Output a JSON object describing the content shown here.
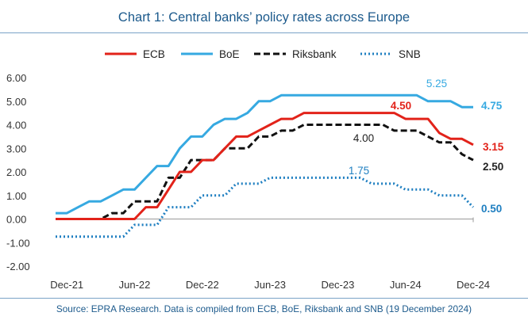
{
  "title": "Chart 1: Central banks’ policy rates across Europe",
  "footer": "Source: EPRA Research. Data is compiled from ECB, BoE, Riksbank and SNB (19 December 2024)",
  "chart_data": {
    "type": "line",
    "title": "Chart 1: Central banks’ policy rates across Europe",
    "ylim": [
      -2.0,
      6.0
    ],
    "yticks": [
      "6.00",
      "5.00",
      "4.00",
      "3.00",
      "2.00",
      "1.00",
      "0.00",
      "-1.00",
      "-2.00"
    ],
    "xlim": [
      "2021-11",
      "2024-12"
    ],
    "xticks": [
      "Dec-21",
      "Jun-22",
      "Dec-22",
      "Jun-23",
      "Dec-23",
      "Jun-24",
      "Dec-24"
    ],
    "legend_position": "top",
    "grid": false,
    "series": [
      {
        "name": "ECB",
        "color": "#e2231a",
        "style": "solid",
        "points": [
          [
            "2021-11",
            0
          ],
          [
            "2022-06",
            0
          ],
          [
            "2022-07",
            0.5
          ],
          [
            "2022-08",
            0.5
          ],
          [
            "2022-09",
            1.25
          ],
          [
            "2022-10",
            2.0
          ],
          [
            "2022-11",
            2.0
          ],
          [
            "2022-12",
            2.5
          ],
          [
            "2023-01",
            2.5
          ],
          [
            "2023-02",
            3.0
          ],
          [
            "2023-03",
            3.5
          ],
          [
            "2023-04",
            3.5
          ],
          [
            "2023-05",
            3.75
          ],
          [
            "2023-06",
            4.0
          ],
          [
            "2023-07",
            4.25
          ],
          [
            "2023-08",
            4.25
          ],
          [
            "2023-09",
            4.5
          ],
          [
            "2024-05",
            4.5
          ],
          [
            "2024-06",
            4.25
          ],
          [
            "2024-08",
            4.25
          ],
          [
            "2024-09",
            3.65
          ],
          [
            "2024-10",
            3.4
          ],
          [
            "2024-11",
            3.4
          ],
          [
            "2024-12",
            3.15
          ]
        ]
      },
      {
        "name": "BoE",
        "color": "#36a9e1",
        "style": "solid",
        "points": [
          [
            "2021-11",
            0.25
          ],
          [
            "2021-12",
            0.25
          ],
          [
            "2022-01",
            0.5
          ],
          [
            "2022-02",
            0.75
          ],
          [
            "2022-03",
            0.75
          ],
          [
            "2022-04",
            1.0
          ],
          [
            "2022-05",
            1.25
          ],
          [
            "2022-06",
            1.25
          ],
          [
            "2022-07",
            1.75
          ],
          [
            "2022-08",
            2.25
          ],
          [
            "2022-09",
            2.25
          ],
          [
            "2022-10",
            3.0
          ],
          [
            "2022-11",
            3.5
          ],
          [
            "2022-12",
            3.5
          ],
          [
            "2023-01",
            4.0
          ],
          [
            "2023-02",
            4.25
          ],
          [
            "2023-03",
            4.25
          ],
          [
            "2023-04",
            4.5
          ],
          [
            "2023-05",
            5.0
          ],
          [
            "2023-06",
            5.0
          ],
          [
            "2023-07",
            5.25
          ],
          [
            "2024-07",
            5.25
          ],
          [
            "2024-08",
            5.0
          ],
          [
            "2024-10",
            5.0
          ],
          [
            "2024-11",
            4.75
          ],
          [
            "2024-12",
            4.75
          ]
        ]
      },
      {
        "name": "Riksbank",
        "color": "#111111",
        "style": "dashed",
        "points": [
          [
            "2021-11",
            0
          ],
          [
            "2022-03",
            0
          ],
          [
            "2022-04",
            0.25
          ],
          [
            "2022-05",
            0.25
          ],
          [
            "2022-06",
            0.75
          ],
          [
            "2022-07",
            0.75
          ],
          [
            "2022-08",
            0.75
          ],
          [
            "2022-09",
            1.75
          ],
          [
            "2022-10",
            1.75
          ],
          [
            "2022-11",
            2.5
          ],
          [
            "2022-12",
            2.5
          ],
          [
            "2023-01",
            2.5
          ],
          [
            "2023-02",
            3.0
          ],
          [
            "2023-03",
            3.0
          ],
          [
            "2023-04",
            3.0
          ],
          [
            "2023-05",
            3.5
          ],
          [
            "2023-06",
            3.5
          ],
          [
            "2023-07",
            3.75
          ],
          [
            "2023-08",
            3.75
          ],
          [
            "2023-09",
            4.0
          ],
          [
            "2024-04",
            4.0
          ],
          [
            "2024-05",
            3.75
          ],
          [
            "2024-06",
            3.75
          ],
          [
            "2024-07",
            3.75
          ],
          [
            "2024-08",
            3.5
          ],
          [
            "2024-09",
            3.25
          ],
          [
            "2024-10",
            3.25
          ],
          [
            "2024-11",
            2.75
          ],
          [
            "2024-12",
            2.5
          ]
        ]
      },
      {
        "name": "SNB",
        "color": "#1f7fc1",
        "style": "dotted",
        "points": [
          [
            "2021-11",
            -0.75
          ],
          [
            "2022-05",
            -0.75
          ],
          [
            "2022-06",
            -0.25
          ],
          [
            "2022-07",
            -0.25
          ],
          [
            "2022-08",
            -0.25
          ],
          [
            "2022-09",
            0.5
          ],
          [
            "2022-10",
            0.5
          ],
          [
            "2022-11",
            0.5
          ],
          [
            "2022-12",
            1.0
          ],
          [
            "2023-01",
            1.0
          ],
          [
            "2023-02",
            1.0
          ],
          [
            "2023-03",
            1.5
          ],
          [
            "2023-04",
            1.5
          ],
          [
            "2023-05",
            1.5
          ],
          [
            "2023-06",
            1.75
          ],
          [
            "2024-02",
            1.75
          ],
          [
            "2024-03",
            1.5
          ],
          [
            "2024-04",
            1.5
          ],
          [
            "2024-05",
            1.5
          ],
          [
            "2024-06",
            1.25
          ],
          [
            "2024-07",
            1.25
          ],
          [
            "2024-08",
            1.25
          ],
          [
            "2024-09",
            1.0
          ],
          [
            "2024-10",
            1.0
          ],
          [
            "2024-11",
            1.0
          ],
          [
            "2024-12",
            0.5
          ]
        ]
      }
    ],
    "annotations": [
      {
        "text": "5.25",
        "series": "BoE",
        "color": "#36a9e1"
      },
      {
        "text": "4.75",
        "series": "BoE",
        "color": "#36a9e1",
        "bold": true
      },
      {
        "text": "4.50",
        "series": "ECB",
        "color": "#e2231a",
        "bold": true
      },
      {
        "text": "3.15",
        "series": "ECB",
        "color": "#e2231a",
        "bold": true
      },
      {
        "text": "4.00",
        "series": "Riksbank",
        "color": "#222222"
      },
      {
        "text": "2.50",
        "series": "Riksbank",
        "color": "#222222",
        "bold": true
      },
      {
        "text": "1.75",
        "series": "SNB",
        "color": "#1f7fc1"
      },
      {
        "text": "0.50",
        "series": "SNB",
        "color": "#1f7fc1",
        "bold": true
      }
    ]
  }
}
